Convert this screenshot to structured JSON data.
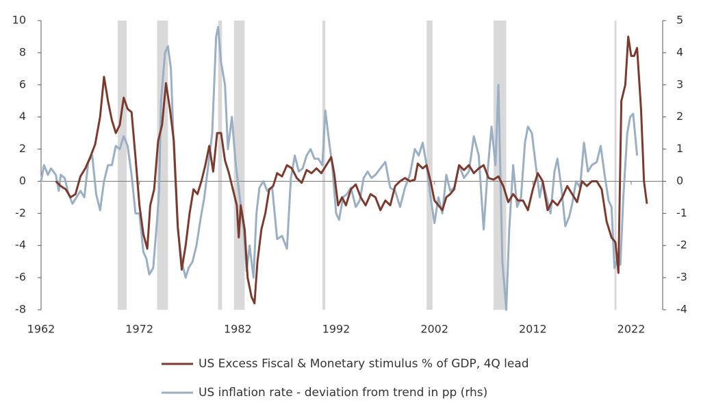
{
  "chart_data": {
    "type": "line",
    "xlim": [
      1962,
      2025.2
    ],
    "xticks": [
      1962,
      1972,
      1982,
      1992,
      2002,
      2012,
      2022
    ],
    "ylim": [
      -8,
      10
    ],
    "yticks": [
      -8,
      -6,
      -4,
      -2,
      0,
      2,
      4,
      6,
      8,
      10
    ],
    "y2lim": [
      -4,
      5
    ],
    "y2ticks": [
      -4,
      -3,
      -2,
      -1,
      0,
      1,
      2,
      3,
      4,
      5
    ],
    "legend": "bottom",
    "shading_color": "#d9d9d9",
    "recessions": [
      [
        1969.8,
        1970.7
      ],
      [
        1973.8,
        1974.9
      ],
      [
        1980.0,
        1980.4
      ],
      [
        1981.6,
        1982.7
      ],
      [
        1990.6,
        1990.9
      ],
      [
        2001.2,
        2001.8
      ],
      [
        2008.0,
        2009.3
      ],
      [
        2020.3,
        2020.5
      ]
    ],
    "series": [
      {
        "name": "US Excess Fiscal & Monetary stimulus % of GDP, 4Q lead",
        "color": "#7b3a2e",
        "axis": "y",
        "x": [
          1963.5,
          1964,
          1964.5,
          1965,
          1965.5,
          1966,
          1966.5,
          1967,
          1967.5,
          1968,
          1968.4,
          1968.8,
          1969.2,
          1969.6,
          1970,
          1970.4,
          1970.8,
          1971.2,
          1971.6,
          1972,
          1972.4,
          1972.8,
          1973.1,
          1973.5,
          1973.9,
          1974.3,
          1974.7,
          1975.1,
          1975.5,
          1975.9,
          1976.3,
          1976.7,
          1977.1,
          1977.5,
          1977.9,
          1978.3,
          1978.7,
          1979.1,
          1979.5,
          1979.9,
          1980.3,
          1980.7,
          1981.1,
          1981.5,
          1981.9,
          1982.1,
          1982.3,
          1982.7,
          1983,
          1983.4,
          1983.7,
          1984,
          1984.4,
          1984.8,
          1985.2,
          1985.6,
          1986,
          1986.5,
          1987,
          1987.5,
          1988,
          1988.5,
          1989,
          1989.5,
          1990,
          1990.5,
          1991,
          1991.5,
          1991.8,
          1992.2,
          1992.6,
          1993,
          1993.5,
          1994,
          1994.5,
          1995,
          1995.5,
          1996,
          1996.5,
          1997,
          1997.5,
          1998,
          1998.5,
          1999,
          1999.5,
          2000,
          2000.3,
          2000.8,
          2001.2,
          2001.6,
          2002,
          2002.4,
          2002.8,
          2003.2,
          2003.6,
          2004,
          2004.5,
          2005,
          2005.5,
          2006,
          2006.5,
          2007,
          2007.5,
          2008,
          2008.5,
          2009,
          2009.5,
          2010,
          2010.5,
          2011,
          2011.5,
          2012,
          2012.5,
          2013,
          2013.5,
          2014,
          2014.5,
          2015,
          2015.5,
          2016,
          2016.5,
          2017,
          2017.5,
          2018,
          2018.5,
          2019,
          2019.5,
          2020,
          2020.4,
          2020.7,
          2021,
          2021.4,
          2021.7,
          2022,
          2022.3,
          2022.6,
          2023,
          2023.3,
          2023.6
        ],
        "values": [
          0,
          -0.3,
          -0.5,
          -1,
          -0.8,
          0.3,
          0.8,
          1.5,
          2.3,
          4,
          6.5,
          5,
          3.8,
          3,
          3.5,
          5.2,
          4.5,
          4.3,
          1.5,
          -1.5,
          -3.3,
          -4.2,
          -1.5,
          -0.5,
          2.5,
          3.5,
          6.1,
          4.5,
          2.5,
          -2.8,
          -5.5,
          -4,
          -2,
          -0.5,
          -0.8,
          0,
          1,
          2.2,
          0.6,
          3,
          3,
          1.3,
          0.5,
          -0.5,
          -1.5,
          -3.5,
          -1.5,
          -3,
          -6,
          -7.2,
          -7.6,
          -5,
          -3,
          -2,
          -0.5,
          -0.3,
          0.5,
          0.3,
          1,
          0.8,
          0.2,
          -0.1,
          0.7,
          0.5,
          0.8,
          0.5,
          1,
          1.5,
          0.5,
          -1.5,
          -1,
          -1.5,
          -0.5,
          -0.2,
          -1,
          -1.5,
          -0.8,
          -1,
          -1.8,
          -1.2,
          -1.5,
          -0.3,
          0,
          0.2,
          0,
          0.1,
          1.1,
          0.8,
          1,
          0,
          -1.2,
          -1.5,
          -1.8,
          -1,
          -0.8,
          -0.5,
          1,
          0.7,
          1,
          0.5,
          0.8,
          1,
          0.2,
          0.1,
          0.3,
          -0.3,
          -1.3,
          -0.8,
          -1.2,
          -1.2,
          -1.8,
          -0.5,
          0.5,
          0,
          -1.8,
          -1.2,
          -1.5,
          -1,
          -0.3,
          -0.8,
          -1.3,
          0,
          -0.3,
          0,
          0,
          -0.5,
          -2.5,
          -3.5,
          -3.8,
          -5.7,
          5,
          6,
          9,
          7.8,
          7.8,
          8.3,
          4.5,
          0,
          -1.4
        ]
      },
      {
        "name": "US inflation rate - deviation from trend in pp (rhs)",
        "color": "#9aaec4",
        "axis": "y2",
        "x": [
          1962,
          1962.3,
          1962.7,
          1963,
          1963.5,
          1963.8,
          1964,
          1964.4,
          1964.8,
          1965.2,
          1965.6,
          1966,
          1966.4,
          1966.8,
          1967.2,
          1967.6,
          1968,
          1968.4,
          1968.8,
          1969.2,
          1969.6,
          1970,
          1970.4,
          1970.8,
          1971.2,
          1971.6,
          1972,
          1972.4,
          1972.7,
          1973,
          1973.4,
          1973.8,
          1974,
          1974.2,
          1974.6,
          1974.9,
          1975.2,
          1975.5,
          1975.9,
          1976.3,
          1976.7,
          1977,
          1977.4,
          1977.8,
          1978.2,
          1978.6,
          1979,
          1979.4,
          1979.8,
          1980,
          1980.3,
          1980.7,
          1981,
          1981.4,
          1981.8,
          1982.2,
          1982.6,
          1982.9,
          1983.2,
          1983.6,
          1983.9,
          1984.2,
          1984.6,
          1985,
          1985.5,
          1986,
          1986.5,
          1987,
          1987.4,
          1987.8,
          1988.2,
          1988.6,
          1989,
          1989.4,
          1989.8,
          1990.2,
          1990.6,
          1990.9,
          1991.3,
          1991.6,
          1992,
          1992.3,
          1992.7,
          1993.1,
          1993.5,
          1994,
          1994.4,
          1994.8,
          1995.2,
          1995.6,
          1996,
          1996.5,
          1997,
          1997.5,
          1998,
          1998.5,
          1999,
          1999.5,
          2000,
          2000.4,
          2000.8,
          2001.2,
          2001.6,
          2002,
          2002.4,
          2002.8,
          2003.2,
          2003.6,
          2004,
          2004.5,
          2005,
          2005.5,
          2006,
          2006.5,
          2007,
          2007.4,
          2007.8,
          2008.2,
          2008.5,
          2008.9,
          2009.3,
          2009.6,
          2010,
          2010.4,
          2010.8,
          2011.2,
          2011.5,
          2011.9,
          2012.3,
          2012.7,
          2013,
          2013.4,
          2013.8,
          2014.2,
          2014.5,
          2014.9,
          2015.3,
          2015.7,
          2016,
          2016.4,
          2016.8,
          2017.2,
          2017.6,
          2018,
          2018.5,
          2018.9,
          2019.3,
          2019.7,
          2020,
          2020.3,
          2020.6,
          2020.9,
          2021.2,
          2021.6,
          2021.9,
          2022.2,
          2022.6
        ],
        "values": [
          0,
          0.5,
          0.2,
          0.4,
          0.2,
          -0.3,
          0.2,
          0.1,
          -0.4,
          -0.7,
          -0.5,
          -0.3,
          -0.5,
          0.6,
          0.8,
          -0.4,
          -0.9,
          0,
          0.5,
          0.5,
          1.1,
          1,
          1.4,
          1.1,
          0.2,
          -1,
          -1,
          -2.2,
          -2.4,
          -2.9,
          -2.7,
          -1.2,
          -0.3,
          2.5,
          4,
          4.2,
          3.5,
          1,
          -1.5,
          -2.5,
          -3,
          -2.7,
          -2.5,
          -2,
          -1.2,
          -0.5,
          0.5,
          1.5,
          4.5,
          4.8,
          3.7,
          3,
          1,
          2,
          0.5,
          -0.5,
          -1.5,
          -2.8,
          -2,
          -3,
          -1,
          -0.2,
          0,
          -0.3,
          -0.2,
          -1.8,
          -1.7,
          -2.1,
          0.1,
          0.8,
          0.3,
          0.4,
          0.8,
          1,
          0.7,
          0.7,
          0.5,
          2.2,
          1.2,
          0.5,
          -1,
          -1.2,
          -0.5,
          -0.4,
          -0.2,
          -0.8,
          -0.6,
          0.1,
          0.3,
          0.1,
          0.2,
          0.4,
          0.6,
          -0.2,
          -0.3,
          -0.8,
          -0.2,
          0.2,
          1,
          0.8,
          1.2,
          0.5,
          -0.5,
          -1.3,
          -0.5,
          -1,
          0.2,
          -0.3,
          -0.2,
          0.5,
          0.1,
          0.3,
          1.4,
          0.8,
          -1.5,
          0.3,
          1.7,
          0.5,
          3,
          -2.5,
          -4,
          -1.5,
          0.5,
          -0.8,
          -0.5,
          1.2,
          1.7,
          1.5,
          0.5,
          -0.5,
          0,
          -0.5,
          -1,
          0.3,
          0.7,
          -0.2,
          -1.4,
          -1.1,
          -0.7,
          0,
          -0.2,
          1.2,
          0.3,
          0.5,
          0.6,
          1.1,
          0.2,
          -0.6,
          -0.8,
          -2.7,
          -2.4,
          -2.6,
          -0.5,
          1.5,
          2,
          2.1,
          0.8
        ]
      }
    ]
  }
}
